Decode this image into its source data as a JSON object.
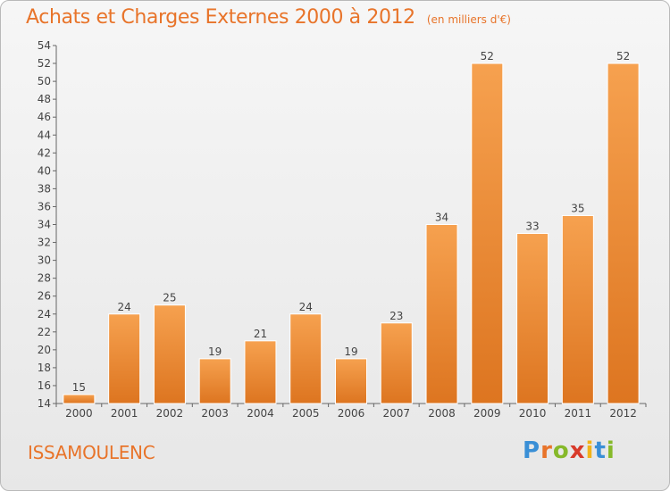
{
  "header": {
    "title": "Achats et Charges Externes 2000 à 2012",
    "subtitle": "(en milliers d'€)"
  },
  "footer": {
    "commune": "ISSAMOULENC",
    "logo_letters": [
      "P",
      "r",
      "o",
      "x",
      "i",
      "t",
      "i"
    ]
  },
  "colors": {
    "bar_light": "#f6a14f",
    "bar_dark": "#dd7520",
    "title": "#e8742a"
  },
  "chart_data": {
    "type": "bar",
    "title": "Achats et Charges Externes 2000 à 2012",
    "subtitle": "(en milliers d'€)",
    "categories": [
      "2000",
      "2001",
      "2002",
      "2003",
      "2004",
      "2005",
      "2006",
      "2007",
      "2008",
      "2009",
      "2010",
      "2011",
      "2012"
    ],
    "values": [
      15,
      24,
      25,
      19,
      21,
      24,
      19,
      23,
      34,
      52,
      33,
      35,
      52
    ],
    "ylim": [
      14,
      54
    ],
    "yticks": [
      14,
      16,
      18,
      20,
      22,
      24,
      26,
      28,
      30,
      32,
      34,
      36,
      38,
      40,
      42,
      44,
      46,
      48,
      50,
      52,
      54
    ],
    "grid": false,
    "legend": "none"
  }
}
